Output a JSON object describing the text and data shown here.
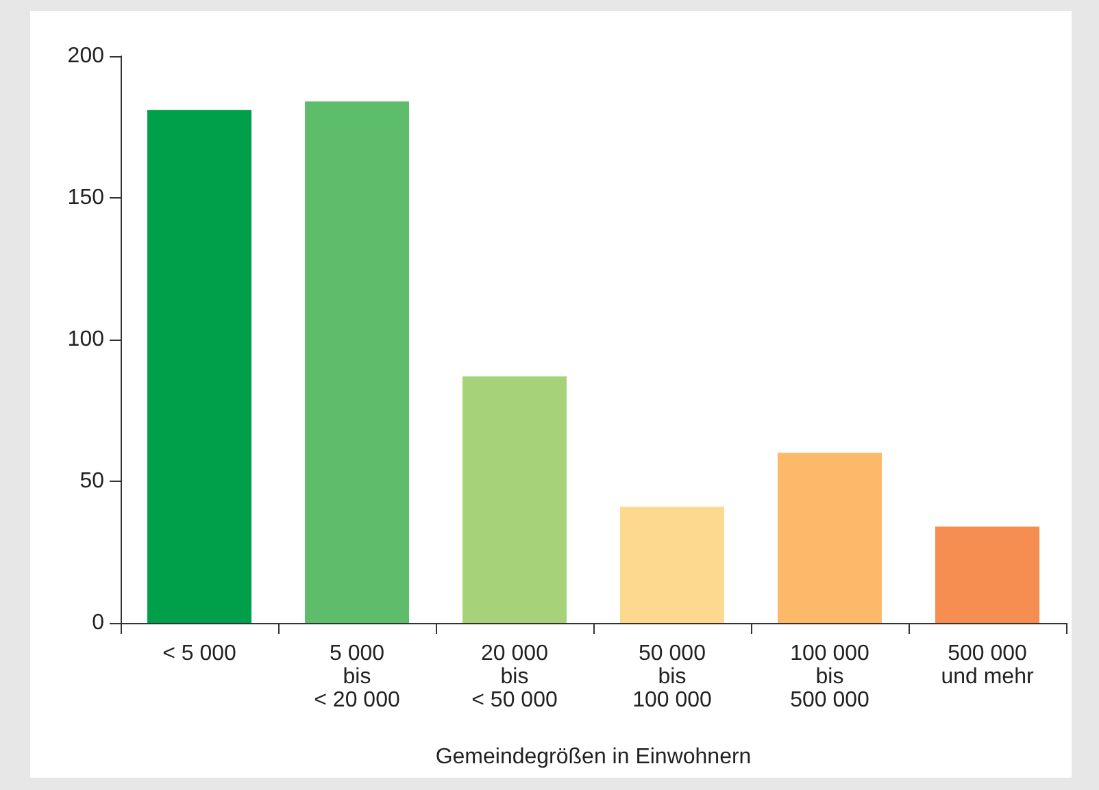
{
  "chart_data": {
    "type": "bar",
    "xlabel": "Gemeindegrößen in Einwohnern",
    "categories": [
      "< 5 000",
      "5 000\nbis\n< 20 000",
      "20 000\nbis\n< 50 000",
      "50 000\nbis\n100 000",
      "100 000\nbis\n500 000",
      "500 000\nund mehr"
    ],
    "values": [
      181,
      184,
      87,
      41,
      60,
      34
    ],
    "colors": [
      "#00a04a",
      "#5dbd6a",
      "#a6d27a",
      "#fdd990",
      "#fdb96a",
      "#f68e52"
    ],
    "ylim": [
      0,
      200
    ],
    "yticks": [
      0,
      50,
      100,
      150,
      200
    ],
    "grid": false
  }
}
